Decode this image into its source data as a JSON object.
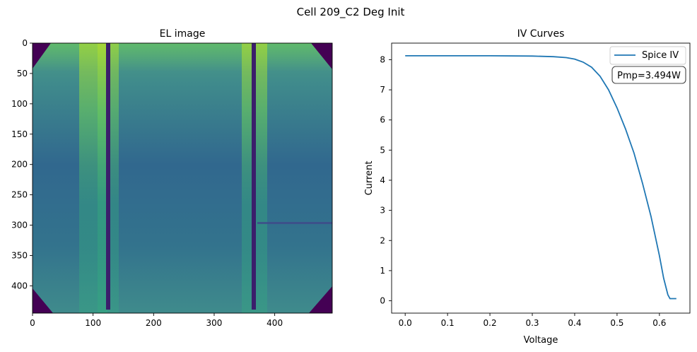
{
  "figure": {
    "suptitle": "Cell 209_C2 Deg Init"
  },
  "el_image": {
    "title": "EL image",
    "xticks": [
      "0",
      "100",
      "200",
      "300",
      "400"
    ],
    "yticks": [
      "0",
      "50",
      "100",
      "150",
      "200",
      "250",
      "300",
      "350",
      "400"
    ],
    "colors": {
      "low": "#440154",
      "mid": "#2f6e8e",
      "high": "#b5de2b"
    }
  },
  "chart_data": [
    {
      "type": "image",
      "title": "EL image",
      "colormap": "viridis",
      "xlim": [
        0,
        495
      ],
      "ylim": [
        445,
        0
      ],
      "xticks": [
        0,
        100,
        200,
        300,
        400
      ],
      "yticks": [
        0,
        50,
        100,
        150,
        200,
        250,
        300,
        350,
        400
      ],
      "busbars_x": [
        126,
        366
      ],
      "crack": {
        "y": 297,
        "x": [
          370,
          495
        ]
      }
    },
    {
      "type": "line",
      "title": "IV Curves",
      "xlabel": "Voltage",
      "ylabel": "Current",
      "xlim": [
        -0.032,
        0.672
      ],
      "ylim": [
        -0.41,
        8.55
      ],
      "xticks": [
        "0.0",
        "0.1",
        "0.2",
        "0.3",
        "0.4",
        "0.5",
        "0.6"
      ],
      "yticks": [
        "0",
        "1",
        "2",
        "3",
        "4",
        "5",
        "6",
        "7",
        "8"
      ],
      "legend": "top-right",
      "annotation": "Pmp=3.494W",
      "series": [
        {
          "name": "Spice IV",
          "color": "#1f77b4",
          "x": [
            0.0,
            0.1,
            0.2,
            0.3,
            0.35,
            0.38,
            0.4,
            0.42,
            0.44,
            0.46,
            0.48,
            0.5,
            0.52,
            0.54,
            0.56,
            0.58,
            0.6,
            0.61,
            0.62,
            0.625,
            0.64
          ],
          "y": [
            8.13,
            8.13,
            8.13,
            8.12,
            8.1,
            8.07,
            8.02,
            7.92,
            7.75,
            7.45,
            7.0,
            6.4,
            5.7,
            4.9,
            3.9,
            2.8,
            1.5,
            0.75,
            0.2,
            0.07,
            0.07
          ]
        }
      ]
    }
  ]
}
